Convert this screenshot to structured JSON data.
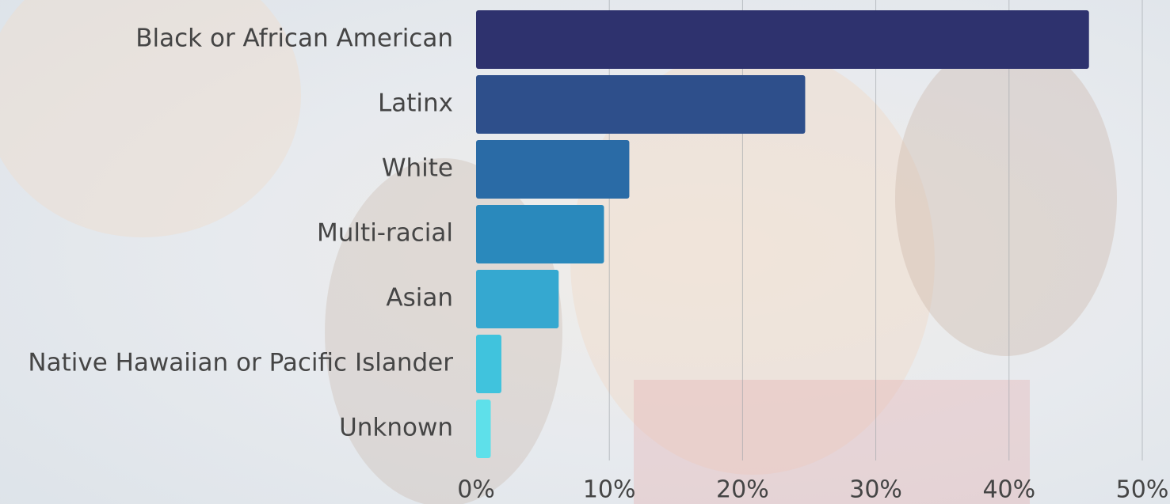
{
  "chart_data": {
    "type": "hbar",
    "categories": [
      "Black or African American",
      "Latinx",
      "White",
      "Multi-racial",
      "Asian",
      "Native Hawaiian or Pacific Islander",
      "Unknown"
    ],
    "values": [
      46,
      24.7,
      11.5,
      9.6,
      6.2,
      1.9,
      1.1
    ],
    "colors": [
      "#2e326e",
      "#2e4f8b",
      "#2a6ba6",
      "#2a89bc",
      "#35a8d0",
      "#40c3dd",
      "#5ee0ea"
    ],
    "xlim": [
      0,
      52
    ],
    "xticks": [
      {
        "value": 0,
        "label": "0%"
      },
      {
        "value": 10,
        "label": "10%"
      },
      {
        "value": 20,
        "label": "20%"
      },
      {
        "value": 30,
        "label": "30%"
      },
      {
        "value": 40,
        "label": "40%"
      },
      {
        "value": 50,
        "label": "50%"
      }
    ],
    "grid": true
  }
}
